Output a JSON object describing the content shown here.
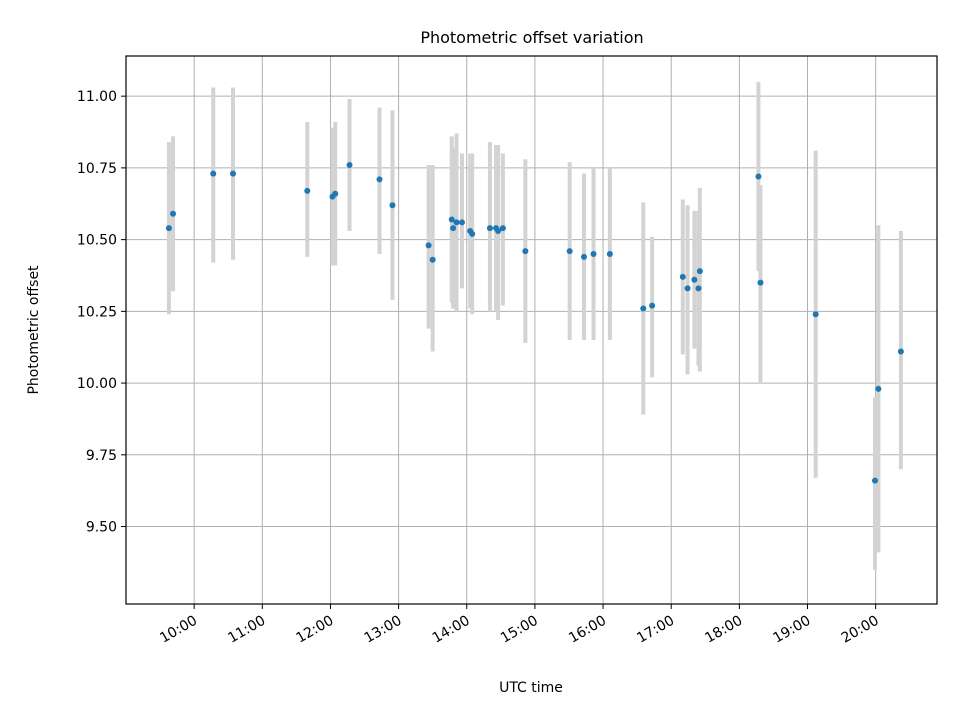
{
  "chart_data": {
    "type": "scatter",
    "title": "Photometric offset variation",
    "xlabel": "UTC time",
    "ylabel": "Photometric offset",
    "x_unit": "hours (UTC)",
    "xlim": [
      9.0,
      20.9
    ],
    "ylim": [
      9.23,
      11.14
    ],
    "grid": true,
    "colors": {
      "point": "#1f77b4",
      "errorbar": "#d3d3d3",
      "grid": "#b0b0b0",
      "axis": "#000000"
    },
    "x_ticks": [
      {
        "value": 10,
        "label": "10:00"
      },
      {
        "value": 11,
        "label": "11:00"
      },
      {
        "value": 12,
        "label": "12:00"
      },
      {
        "value": 13,
        "label": "13:00"
      },
      {
        "value": 14,
        "label": "14:00"
      },
      {
        "value": 15,
        "label": "15:00"
      },
      {
        "value": 16,
        "label": "16:00"
      },
      {
        "value": 17,
        "label": "17:00"
      },
      {
        "value": 18,
        "label": "18:00"
      },
      {
        "value": 19,
        "label": "19:00"
      },
      {
        "value": 20,
        "label": "20:00"
      }
    ],
    "y_ticks": [
      {
        "value": 9.5,
        "label": "9.50"
      },
      {
        "value": 9.75,
        "label": "9.75"
      },
      {
        "value": 10.0,
        "label": "10.00"
      },
      {
        "value": 10.25,
        "label": "10.25"
      },
      {
        "value": 10.5,
        "label": "10.50"
      },
      {
        "value": 10.75,
        "label": "10.75"
      },
      {
        "value": 11.0,
        "label": "11.00"
      }
    ],
    "points": [
      {
        "x": 9.63,
        "y": 10.54,
        "lo": 10.24,
        "hi": 10.84
      },
      {
        "x": 9.69,
        "y": 10.59,
        "lo": 10.32,
        "hi": 10.86
      },
      {
        "x": 10.28,
        "y": 10.73,
        "lo": 10.42,
        "hi": 11.03
      },
      {
        "x": 10.57,
        "y": 10.73,
        "lo": 10.43,
        "hi": 11.03
      },
      {
        "x": 11.66,
        "y": 10.67,
        "lo": 10.44,
        "hi": 10.91
      },
      {
        "x": 12.03,
        "y": 10.65,
        "lo": 10.41,
        "hi": 10.89
      },
      {
        "x": 12.07,
        "y": 10.66,
        "lo": 10.41,
        "hi": 10.91
      },
      {
        "x": 12.28,
        "y": 10.76,
        "lo": 10.53,
        "hi": 10.99
      },
      {
        "x": 12.72,
        "y": 10.71,
        "lo": 10.45,
        "hi": 10.96
      },
      {
        "x": 12.91,
        "y": 10.62,
        "lo": 10.29,
        "hi": 10.95
      },
      {
        "x": 13.44,
        "y": 10.48,
        "lo": 10.19,
        "hi": 10.76
      },
      {
        "x": 13.5,
        "y": 10.43,
        "lo": 10.11,
        "hi": 10.76
      },
      {
        "x": 13.78,
        "y": 10.57,
        "lo": 10.28,
        "hi": 10.86
      },
      {
        "x": 13.8,
        "y": 10.54,
        "lo": 10.26,
        "hi": 10.82
      },
      {
        "x": 13.85,
        "y": 10.56,
        "lo": 10.25,
        "hi": 10.87
      },
      {
        "x": 13.93,
        "y": 10.56,
        "lo": 10.33,
        "hi": 10.8
      },
      {
        "x": 14.05,
        "y": 10.53,
        "lo": 10.26,
        "hi": 10.8
      },
      {
        "x": 14.08,
        "y": 10.52,
        "lo": 10.24,
        "hi": 10.8
      },
      {
        "x": 14.34,
        "y": 10.54,
        "lo": 10.25,
        "hi": 10.84
      },
      {
        "x": 14.43,
        "y": 10.54,
        "lo": 10.25,
        "hi": 10.83
      },
      {
        "x": 14.46,
        "y": 10.53,
        "lo": 10.22,
        "hi": 10.83
      },
      {
        "x": 14.53,
        "y": 10.54,
        "lo": 10.27,
        "hi": 10.8
      },
      {
        "x": 14.86,
        "y": 10.46,
        "lo": 10.14,
        "hi": 10.78
      },
      {
        "x": 15.51,
        "y": 10.46,
        "lo": 10.15,
        "hi": 10.77
      },
      {
        "x": 15.72,
        "y": 10.44,
        "lo": 10.15,
        "hi": 10.73
      },
      {
        "x": 15.86,
        "y": 10.45,
        "lo": 10.15,
        "hi": 10.75
      },
      {
        "x": 16.1,
        "y": 10.45,
        "lo": 10.15,
        "hi": 10.75
      },
      {
        "x": 16.59,
        "y": 10.26,
        "lo": 9.89,
        "hi": 10.63
      },
      {
        "x": 16.72,
        "y": 10.27,
        "lo": 10.02,
        "hi": 10.51
      },
      {
        "x": 17.17,
        "y": 10.37,
        "lo": 10.1,
        "hi": 10.64
      },
      {
        "x": 17.24,
        "y": 10.33,
        "lo": 10.03,
        "hi": 10.62
      },
      {
        "x": 17.34,
        "y": 10.36,
        "lo": 10.12,
        "hi": 10.6
      },
      {
        "x": 17.4,
        "y": 10.33,
        "lo": 10.06,
        "hi": 10.6
      },
      {
        "x": 17.42,
        "y": 10.39,
        "lo": 10.04,
        "hi": 10.68
      },
      {
        "x": 18.28,
        "y": 10.72,
        "lo": 10.39,
        "hi": 11.05
      },
      {
        "x": 18.31,
        "y": 10.35,
        "lo": 10.0,
        "hi": 10.69
      },
      {
        "x": 19.12,
        "y": 10.24,
        "lo": 9.67,
        "hi": 10.81
      },
      {
        "x": 19.99,
        "y": 9.66,
        "lo": 9.35,
        "hi": 9.95
      },
      {
        "x": 20.04,
        "y": 9.98,
        "lo": 9.41,
        "hi": 10.55
      },
      {
        "x": 20.37,
        "y": 10.11,
        "lo": 9.7,
        "hi": 10.53
      }
    ]
  }
}
